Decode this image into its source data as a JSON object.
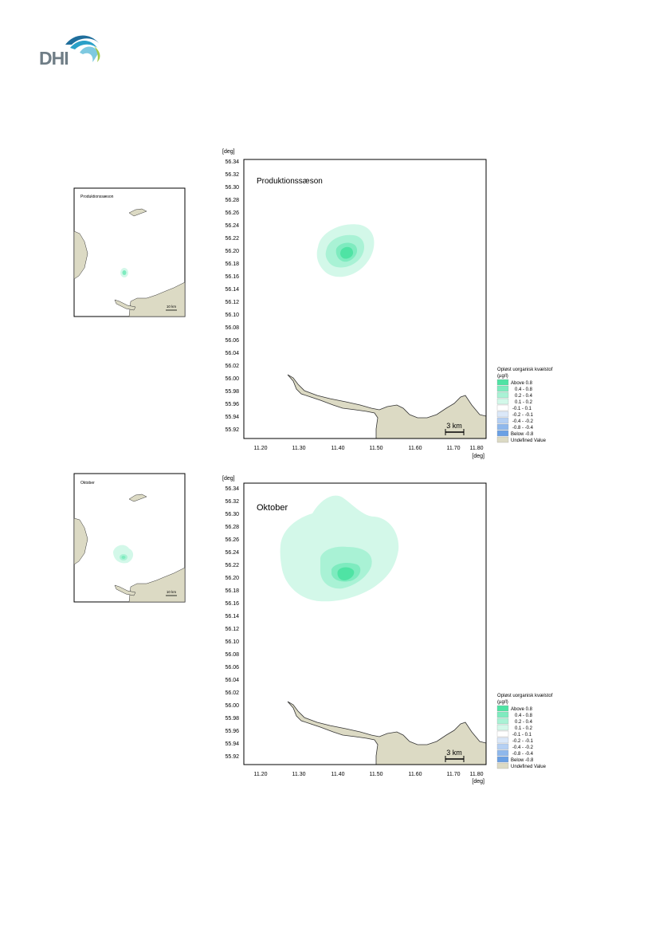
{
  "logo": {
    "text": "DHI"
  },
  "panels": [
    {
      "title": "Produktionssæson",
      "inset_title": "Produktionssæson",
      "plume": "prod"
    },
    {
      "title": "Oktober",
      "inset_title": "Oktober",
      "plume": "okt"
    }
  ],
  "axes": {
    "y_unit": "[deg]",
    "x_unit": "[deg]",
    "y_ticks": [
      "56.34",
      "56.32",
      "56.30",
      "56.28",
      "56.26",
      "56.24",
      "56.22",
      "56.20",
      "56.18",
      "56.16",
      "56.14",
      "56.12",
      "56.10",
      "56.08",
      "56.06",
      "56.04",
      "56.02",
      "56.00",
      "55.98",
      "55.96",
      "55.94",
      "55.92"
    ],
    "x_ticks": [
      "11.20",
      "11.30",
      "11.40",
      "11.50",
      "11.60",
      "11.70",
      "11.80"
    ]
  },
  "scalebar": {
    "label": "3 km",
    "inset_label": "10 km"
  },
  "legend": {
    "title_line1": "Opløst uorganisk kvælstof",
    "title_line2": "(µg/l)",
    "items": [
      {
        "label": "Above  0.8",
        "color": "#4fe3a4"
      },
      {
        "label": "0.4 -  0.8",
        "color": "#7eebbf"
      },
      {
        "label": "0.2 -  0.4",
        "color": "#a9f2d5"
      },
      {
        "label": "0.1 -  0.2",
        "color": "#d3f8e9"
      },
      {
        "label": "-0.1 -  0.1",
        "color": "#ffffff"
      },
      {
        "label": "-0.2 - -0.1",
        "color": "#dbe8f9"
      },
      {
        "label": "-0.4 - -0.2",
        "color": "#b5d0f3"
      },
      {
        "label": "-0.8 - -0.4",
        "color": "#8fb8ec"
      },
      {
        "label": "Below -0.8",
        "color": "#6aa0e4"
      },
      {
        "label": "Undefined Value",
        "color": "#dcdac4"
      }
    ]
  },
  "colors": {
    "land": "#dcdac4",
    "coast": "#333333",
    "frame": "#000000"
  }
}
